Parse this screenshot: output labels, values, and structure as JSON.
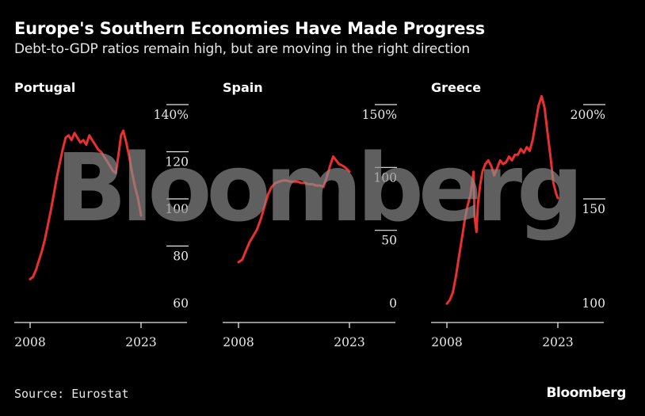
{
  "title": "Europe's Southern Economies Have Made Progress",
  "subtitle": "Debt-to-GDP ratios remain high, but are moving in the right direction",
  "source": "Source: Eurostat",
  "brand": "Bloomberg",
  "watermark": "Bloomberg",
  "colors": {
    "line": "#e8312f",
    "background": "#000000",
    "axis": "#e8e8e8",
    "watermark": "#8c8c8c"
  },
  "chart_data": [
    {
      "type": "line",
      "panel_title": "Portugal",
      "x_ticks": [
        "2008",
        "2023"
      ],
      "xlim": [
        2008,
        2023
      ],
      "ylim": [
        60,
        140
      ],
      "y_ticks": [
        {
          "value": 140,
          "label": "140%"
        },
        {
          "value": 120,
          "label": "120"
        },
        {
          "value": 100,
          "label": "100"
        },
        {
          "value": 80,
          "label": "80"
        },
        {
          "value": 60,
          "label": "60"
        }
      ],
      "series": [
        {
          "x": [
            2008.0,
            2008.4,
            2008.8,
            2009.2,
            2009.6,
            2010.0,
            2010.4,
            2010.8,
            2011.2,
            2011.6,
            2012.0,
            2012.4,
            2012.8,
            2013.2,
            2013.6,
            2014.0,
            2014.4,
            2014.8,
            2015.2,
            2015.6,
            2016.0,
            2016.4,
            2016.8,
            2017.2,
            2017.6,
            2018.0,
            2018.4,
            2018.8,
            2019.2,
            2019.6,
            2020.0,
            2020.3,
            2020.6,
            2021.0,
            2021.4,
            2021.8,
            2022.2,
            2022.6,
            2023.0
          ],
          "values": [
            72,
            73,
            76,
            80,
            84,
            89,
            95,
            101,
            108,
            115,
            121,
            127,
            132,
            133,
            131,
            134,
            132,
            130,
            131,
            129,
            133,
            131,
            129,
            127,
            126,
            124,
            122,
            120,
            118,
            117,
            126,
            133,
            135,
            130,
            124,
            117,
            111,
            106,
            99
          ]
        }
      ]
    },
    {
      "type": "line",
      "panel_title": "Spain",
      "x_ticks": [
        "2008",
        "2023"
      ],
      "xlim": [
        2008,
        2023
      ],
      "ylim": [
        0,
        150
      ],
      "y_ticks": [
        {
          "value": 150,
          "label": "150%"
        },
        {
          "value": 100,
          "label": "100"
        },
        {
          "value": 50,
          "label": "50"
        },
        {
          "value": 0,
          "label": "0"
        }
      ],
      "series": [
        {
          "x": [
            2008.0,
            2008.5,
            2009.0,
            2009.5,
            2010.0,
            2010.5,
            2011.0,
            2011.5,
            2012.0,
            2012.5,
            2013.0,
            2013.5,
            2014.0,
            2014.5,
            2015.0,
            2015.5,
            2016.0,
            2016.5,
            2017.0,
            2017.5,
            2018.0,
            2018.5,
            2019.0,
            2019.5,
            2020.0,
            2020.4,
            2020.8,
            2021.2,
            2021.6,
            2022.0,
            2022.5,
            2023.0
          ],
          "values": [
            36,
            38,
            45,
            52,
            57,
            62,
            70,
            80,
            90,
            96,
            99,
            100,
            101,
            101,
            100,
            100,
            100,
            99,
            99,
            98,
            98,
            97,
            97,
            96,
            105,
            113,
            120,
            117,
            114,
            113,
            111,
            108
          ]
        }
      ]
    },
    {
      "type": "line",
      "panel_title": "Greece",
      "x_ticks": [
        "2008",
        "2023"
      ],
      "xlim": [
        2008,
        2023
      ],
      "ylim": [
        100,
        200
      ],
      "y_ticks": [
        {
          "value": 200,
          "label": "200%"
        },
        {
          "value": 150,
          "label": "150"
        },
        {
          "value": 100,
          "label": "100"
        }
      ],
      "series": [
        {
          "x": [
            2008.0,
            2008.4,
            2008.8,
            2009.2,
            2009.6,
            2010.0,
            2010.4,
            2010.8,
            2011.2,
            2011.6,
            2011.75,
            2012.0,
            2012.2,
            2012.5,
            2012.8,
            2013.2,
            2013.6,
            2014.0,
            2014.4,
            2014.8,
            2015.2,
            2015.6,
            2016.0,
            2016.4,
            2016.8,
            2017.2,
            2017.6,
            2018.0,
            2018.4,
            2018.8,
            2019.2,
            2019.6,
            2020.0,
            2020.4,
            2020.8,
            2021.2,
            2021.6,
            2022.0,
            2022.4,
            2022.8,
            2023.0
          ],
          "values": [
            102,
            104,
            108,
            116,
            126,
            136,
            146,
            154,
            160,
            172,
            148,
            140,
            155,
            165,
            172,
            176,
            178,
            175,
            170,
            174,
            178,
            176,
            177,
            180,
            178,
            181,
            181,
            184,
            182,
            185,
            183,
            189,
            198,
            207,
            212,
            206,
            193,
            180,
            166,
            160,
            158
          ]
        }
      ]
    }
  ]
}
